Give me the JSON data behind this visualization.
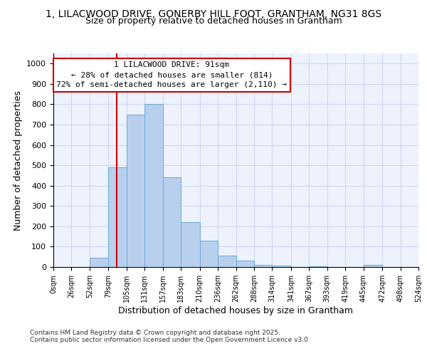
{
  "title_line1": "1, LILACWOOD DRIVE, GONERBY HILL FOOT, GRANTHAM, NG31 8GS",
  "title_line2": "Size of property relative to detached houses in Grantham",
  "xlabel": "Distribution of detached houses by size in Grantham",
  "ylabel": "Number of detached properties",
  "bin_edges": [
    0,
    26,
    52,
    79,
    105,
    131,
    157,
    183,
    210,
    236,
    262,
    288,
    314,
    341,
    367,
    393,
    419,
    445,
    472,
    498,
    524
  ],
  "bin_labels": [
    "0sqm",
    "26sqm",
    "52sqm",
    "79sqm",
    "105sqm",
    "131sqm",
    "157sqm",
    "183sqm",
    "210sqm",
    "236sqm",
    "262sqm",
    "288sqm",
    "314sqm",
    "341sqm",
    "367sqm",
    "393sqm",
    "419sqm",
    "445sqm",
    "472sqm",
    "498sqm",
    "524sqm"
  ],
  "values": [
    0,
    0,
    45,
    490,
    750,
    800,
    440,
    220,
    130,
    55,
    30,
    10,
    7,
    0,
    5,
    0,
    0,
    10,
    0,
    0
  ],
  "bar_color": "#b8d0ee",
  "bar_edge_color": "#6aaad4",
  "red_line_x": 91,
  "ylim": [
    0,
    1050
  ],
  "yticks": [
    0,
    100,
    200,
    300,
    400,
    500,
    600,
    700,
    800,
    900,
    1000
  ],
  "annotation_text": "1 LILACWOOD DRIVE: 91sqm\n← 28% of detached houses are smaller (814)\n72% of semi-detached houses are larger (2,110) →",
  "annotation_box_color": "#ffffff",
  "annotation_box_edge": "#cc0000",
  "footer_text": "Contains HM Land Registry data © Crown copyright and database right 2025.\nContains public sector information licensed under the Open Government Licence v3.0.",
  "background_color": "#eef2fc",
  "grid_color": "#c8d4f0",
  "title1_fontsize": 10,
  "title2_fontsize": 9,
  "ylabel_fontsize": 9,
  "xlabel_fontsize": 9,
  "tick_fontsize": 8,
  "annot_fontsize": 8
}
